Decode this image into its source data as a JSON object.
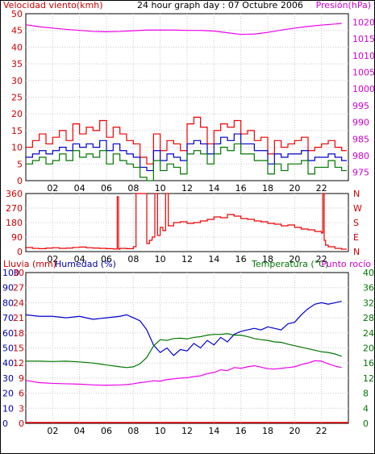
{
  "window": {
    "outer_border_color": "#000000"
  },
  "chart_data": [
    {
      "type": "line",
      "title": "24 hour graph day : 07 Octubre 2006",
      "left_label": "Velocidad viento(kmh)",
      "right_label": "Presión(hPa)",
      "x_ticks": [
        "02",
        "04",
        "06",
        "08",
        "10",
        "12",
        "14",
        "16",
        "18",
        "20",
        "22"
      ],
      "xlim_hours": [
        0,
        24
      ],
      "left_ylim": [
        0,
        50
      ],
      "left_ticks": [
        0,
        5,
        10,
        15,
        20,
        25,
        30,
        35,
        40,
        45,
        50
      ],
      "right_ylim": [
        972.5,
        1022.5
      ],
      "right_ticks": [
        975,
        980,
        985,
        990,
        995,
        1000,
        1005,
        1010,
        1015,
        1020
      ],
      "grid": true,
      "series": [
        {
          "key": "gust",
          "color": "#ee0000",
          "x": [
            0,
            0.5,
            1,
            1.5,
            2,
            2.5,
            3,
            3.5,
            4,
            4.5,
            5,
            5.5,
            6,
            6.5,
            7,
            7.5,
            8,
            8.5,
            9,
            9.5,
            10,
            10.5,
            11,
            11.5,
            12,
            12.5,
            13,
            13.5,
            14,
            14.5,
            15,
            15.5,
            16,
            16.5,
            17,
            17.5,
            18,
            18.5,
            19,
            19.5,
            20,
            20.5,
            21,
            21.5,
            22,
            22.5,
            23,
            23.5
          ],
          "y": [
            10,
            12,
            14,
            11,
            13,
            15,
            12,
            17,
            14,
            16,
            15,
            18,
            13,
            16,
            14,
            12,
            11,
            7,
            5,
            14,
            9,
            12,
            11,
            9,
            17,
            19,
            16,
            11,
            15,
            17,
            16,
            18,
            14,
            15,
            12,
            13,
            8,
            12,
            10,
            11,
            12,
            13,
            9,
            10,
            11,
            12,
            10,
            9
          ]
        },
        {
          "key": "avg",
          "color": "#0000cc",
          "x": [
            0,
            0.5,
            1,
            1.5,
            2,
            2.5,
            3,
            3.5,
            4,
            4.5,
            5,
            5.5,
            6,
            6.5,
            7,
            7.5,
            8,
            8.5,
            9,
            9.5,
            10,
            10.5,
            11,
            11.5,
            12,
            12.5,
            13,
            13.5,
            14,
            14.5,
            15,
            15.5,
            16,
            16.5,
            17,
            17.5,
            18,
            18.5,
            19,
            19.5,
            20,
            20.5,
            21,
            21.5,
            22,
            22.5,
            23,
            23.5
          ],
          "y": [
            7,
            8,
            9,
            8,
            9,
            10,
            9,
            11,
            10,
            11,
            10,
            12,
            9,
            11,
            9,
            8,
            7,
            4,
            3,
            9,
            6,
            8,
            7,
            6,
            11,
            12,
            11,
            8,
            11,
            13,
            12,
            14,
            11,
            11,
            9,
            9,
            5,
            8,
            7,
            8,
            8,
            9,
            6,
            7,
            7,
            8,
            7,
            6
          ]
        },
        {
          "key": "min",
          "color": "#007700",
          "x": [
            0,
            0.5,
            1,
            1.5,
            2,
            2.5,
            3,
            3.5,
            4,
            4.5,
            5,
            5.5,
            6,
            6.5,
            7,
            7.5,
            8,
            8.5,
            9,
            9.5,
            10,
            10.5,
            11,
            11.5,
            12,
            12.5,
            13,
            13.5,
            14,
            14.5,
            15,
            15.5,
            16,
            16.5,
            17,
            17.5,
            18,
            18.5,
            19,
            19.5,
            20,
            20.5,
            21,
            21.5,
            22,
            22.5,
            23,
            23.5
          ],
          "y": [
            5,
            6,
            7,
            5,
            6,
            8,
            6,
            9,
            7,
            8,
            7,
            9,
            5,
            8,
            6,
            5,
            4,
            1,
            0,
            6,
            3,
            5,
            4,
            2,
            8,
            9,
            8,
            5,
            8,
            10,
            9,
            11,
            8,
            8,
            6,
            6,
            2,
            5,
            3,
            5,
            5,
            6,
            2,
            4,
            4,
            6,
            4,
            3
          ]
        },
        {
          "key": "pressure",
          "axis": "right",
          "color": "#ee00ee",
          "x": [
            0,
            1,
            2,
            3,
            4,
            5,
            6,
            7,
            8,
            9,
            10,
            11,
            12,
            13,
            14,
            15,
            16,
            17,
            18,
            19,
            20,
            21,
            22,
            23,
            23.5
          ],
          "y": [
            1019.2,
            1018.6,
            1018.2,
            1017.8,
            1017.5,
            1017.2,
            1017.1,
            1017.2,
            1017.4,
            1017.6,
            1017.6,
            1017.6,
            1017.5,
            1017.5,
            1017.3,
            1016.8,
            1016.3,
            1016.4,
            1016.9,
            1017.6,
            1018.2,
            1018.7,
            1019.1,
            1019.4,
            1019.6
          ]
        }
      ]
    },
    {
      "type": "scatter",
      "left_ylim": [
        0,
        360
      ],
      "left_ticks": [
        0,
        90,
        180,
        270,
        360
      ],
      "right_labels": [
        "N",
        "E",
        "S",
        "W",
        "N"
      ],
      "x_ticks": [
        "02",
        "04",
        "06",
        "08",
        "10",
        "12",
        "14",
        "16",
        "18",
        "20",
        "22"
      ],
      "series": [
        {
          "key": "direction",
          "color": "#ee0000",
          "x": [
            0,
            0.5,
            1,
            1.5,
            2,
            2.5,
            3,
            3.5,
            4,
            4.5,
            5,
            5.5,
            6,
            6.5,
            6.8,
            6.9,
            7,
            7.5,
            8,
            8.2,
            8.4,
            8.6,
            8.8,
            9,
            9.2,
            9.4,
            9.6,
            9.8,
            10,
            10.2,
            10.4,
            10.6,
            11,
            11.5,
            12,
            12.5,
            13,
            13.5,
            14,
            14.5,
            15,
            15.5,
            16,
            16.5,
            17,
            17.5,
            18,
            18.5,
            19,
            19.5,
            20,
            20.5,
            21,
            21.5,
            22,
            22.1,
            22.2,
            22.3,
            22.5,
            23,
            23.5
          ],
          "y": [
            25,
            20,
            18,
            22,
            24,
            20,
            22,
            26,
            28,
            24,
            22,
            20,
            18,
            16,
            340,
            15,
            20,
            18,
            30,
            360,
            360,
            360,
            360,
            50,
            70,
            90,
            360,
            100,
            150,
            130,
            360,
            160,
            180,
            185,
            175,
            180,
            190,
            200,
            215,
            210,
            230,
            220,
            205,
            200,
            190,
            185,
            175,
            170,
            160,
            165,
            150,
            140,
            135,
            125,
            115,
            360,
            70,
            40,
            30,
            20,
            15
          ]
        }
      ]
    },
    {
      "type": "line",
      "left_label": "Lluvia (mm)",
      "left_label2": "Humedad (%)",
      "right_label": "Temperatura (°C)",
      "right_label2": "Punto rocío",
      "rain_ticks": [
        0,
        3,
        6,
        9,
        12,
        15,
        18,
        21,
        24,
        27,
        30
      ],
      "humidity_ticks": [
        0,
        10,
        20,
        30,
        40,
        50,
        60,
        70,
        80,
        90,
        100
      ],
      "right_ticks": [
        0,
        4,
        8,
        12,
        16,
        20,
        24,
        28,
        32,
        36,
        40
      ],
      "x_ticks": [
        "02",
        "04",
        "06",
        "08",
        "10",
        "12",
        "14",
        "16",
        "18",
        "20",
        "22"
      ],
      "series": [
        {
          "key": "humidity",
          "axis": "humidity",
          "color": "#0000cc",
          "x": [
            0,
            1,
            2,
            3,
            4,
            5,
            6,
            7,
            7.5,
            8,
            8.5,
            9,
            9.5,
            10,
            10.5,
            11,
            11.5,
            12,
            12.5,
            13,
            13.5,
            14,
            14.5,
            15,
            15.5,
            16,
            16.5,
            17,
            17.5,
            18,
            18.5,
            19,
            19.5,
            20,
            20.5,
            21,
            21.5,
            22,
            22.5,
            23,
            23.5
          ],
          "y": [
            72,
            71,
            71,
            70,
            71,
            69,
            70,
            71,
            72,
            70,
            68,
            62,
            52,
            47,
            50,
            45,
            49,
            48,
            53,
            50,
            55,
            52,
            57,
            54,
            59,
            61,
            62,
            63,
            62,
            64,
            63,
            62,
            66,
            67,
            72,
            76,
            79,
            80,
            79,
            80,
            81
          ]
        },
        {
          "key": "temperature",
          "axis": "right",
          "color": "#007700",
          "x": [
            0,
            1,
            2,
            3,
            4,
            5,
            6,
            7,
            7.5,
            8,
            8.5,
            9,
            9.5,
            10,
            10.5,
            11,
            11.5,
            12,
            12.5,
            13,
            13.5,
            14,
            14.5,
            15,
            15.5,
            16,
            16.5,
            17,
            17.5,
            18,
            18.5,
            19,
            19.5,
            20,
            20.5,
            21,
            21.5,
            22,
            22.5,
            23,
            23.5
          ],
          "y": [
            16.5,
            16.5,
            16.4,
            16.5,
            16.3,
            16.0,
            15.5,
            15.0,
            14.8,
            15.0,
            15.8,
            17.5,
            20.5,
            22.2,
            22.0,
            22.5,
            22.6,
            22.4,
            22.8,
            23.0,
            23.4,
            23.6,
            23.6,
            23.8,
            23.4,
            23.4,
            23.0,
            22.5,
            22.2,
            22.0,
            21.6,
            21.5,
            21.0,
            20.6,
            20.2,
            19.8,
            19.4,
            19.0,
            18.8,
            18.4,
            17.8
          ]
        },
        {
          "key": "dewpoint",
          "axis": "right",
          "color": "#ee00ee",
          "x": [
            0,
            1,
            2,
            3,
            4,
            5,
            6,
            7,
            7.5,
            8,
            8.5,
            9,
            9.5,
            10,
            10.5,
            11,
            11.5,
            12,
            12.5,
            13,
            13.5,
            14,
            14.5,
            15,
            15.5,
            16,
            16.5,
            17,
            17.5,
            18,
            18.5,
            19,
            19.5,
            20,
            20.5,
            21,
            21.5,
            22,
            22.5,
            23,
            23.5
          ],
          "y": [
            11.4,
            10.8,
            10.6,
            10.5,
            10.4,
            10.2,
            10.1,
            10.2,
            10.3,
            10.5,
            10.8,
            11.0,
            11.3,
            11.2,
            11.6,
            11.8,
            12.0,
            12.1,
            12.4,
            12.6,
            13.2,
            13.5,
            14.2,
            14.0,
            14.8,
            14.6,
            15.0,
            15.3,
            14.9,
            14.5,
            14.4,
            14.6,
            14.8,
            15.0,
            15.6,
            16.0,
            16.6,
            16.5,
            15.8,
            15.2,
            14.8
          ]
        },
        {
          "key": "rain",
          "axis": "rain",
          "color": "#ee0000",
          "x": [
            0,
            24
          ],
          "y": [
            0,
            0
          ]
        }
      ]
    }
  ]
}
